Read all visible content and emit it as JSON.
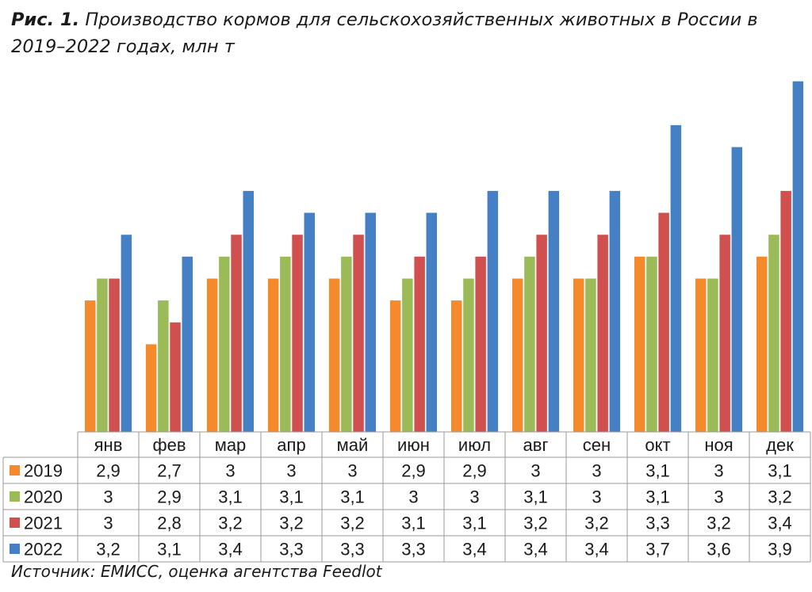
{
  "title": {
    "lead": "Рис. 1.",
    "text": "Производство кормов для сельскохозяйственных животных в России в 2019–2022 годах, млн т"
  },
  "source": "Источник: ЕМИСС, оценка агентства Feedlot",
  "chart_data": {
    "type": "bar",
    "categories": [
      "янв",
      "фев",
      "мар",
      "апр",
      "май",
      "июн",
      "июл",
      "авг",
      "сен",
      "окт",
      "ноя",
      "дек"
    ],
    "series": [
      {
        "name": "2019",
        "color": "#f58a2d",
        "values": [
          2.9,
          2.7,
          3.0,
          3.0,
          3.0,
          2.9,
          2.9,
          3.0,
          3.0,
          3.1,
          3.0,
          3.1
        ],
        "labels": [
          "2,9",
          "2,7",
          "3",
          "3",
          "3",
          "2,9",
          "2,9",
          "3",
          "3",
          "3,1",
          "3",
          "3,1"
        ]
      },
      {
        "name": "2020",
        "color": "#9bbb59",
        "values": [
          3.0,
          2.9,
          3.1,
          3.1,
          3.1,
          3.0,
          3.0,
          3.1,
          3.0,
          3.1,
          3.0,
          3.2
        ],
        "labels": [
          "3",
          "2,9",
          "3,1",
          "3,1",
          "3,1",
          "3",
          "3",
          "3,1",
          "3",
          "3,1",
          "3",
          "3,2"
        ]
      },
      {
        "name": "2021",
        "color": "#d0504f",
        "values": [
          3.0,
          2.8,
          3.2,
          3.2,
          3.2,
          3.1,
          3.1,
          3.2,
          3.2,
          3.3,
          3.2,
          3.4
        ],
        "labels": [
          "3",
          "2,8",
          "3,2",
          "3,2",
          "3,2",
          "3,1",
          "3,1",
          "3,2",
          "3,2",
          "3,3",
          "3,2",
          "3,4"
        ]
      },
      {
        "name": "2022",
        "color": "#4580c4",
        "values": [
          3.2,
          3.1,
          3.4,
          3.3,
          3.3,
          3.3,
          3.4,
          3.4,
          3.4,
          3.7,
          3.6,
          3.9
        ],
        "labels": [
          "3,2",
          "3,1",
          "3,4",
          "3,3",
          "3,3",
          "3,3",
          "3,4",
          "3,4",
          "3,4",
          "3,7",
          "3,6",
          "3,9"
        ]
      }
    ],
    "ylim": [
      2.3,
      4.0
    ],
    "grid": false,
    "legend": "data-table"
  }
}
